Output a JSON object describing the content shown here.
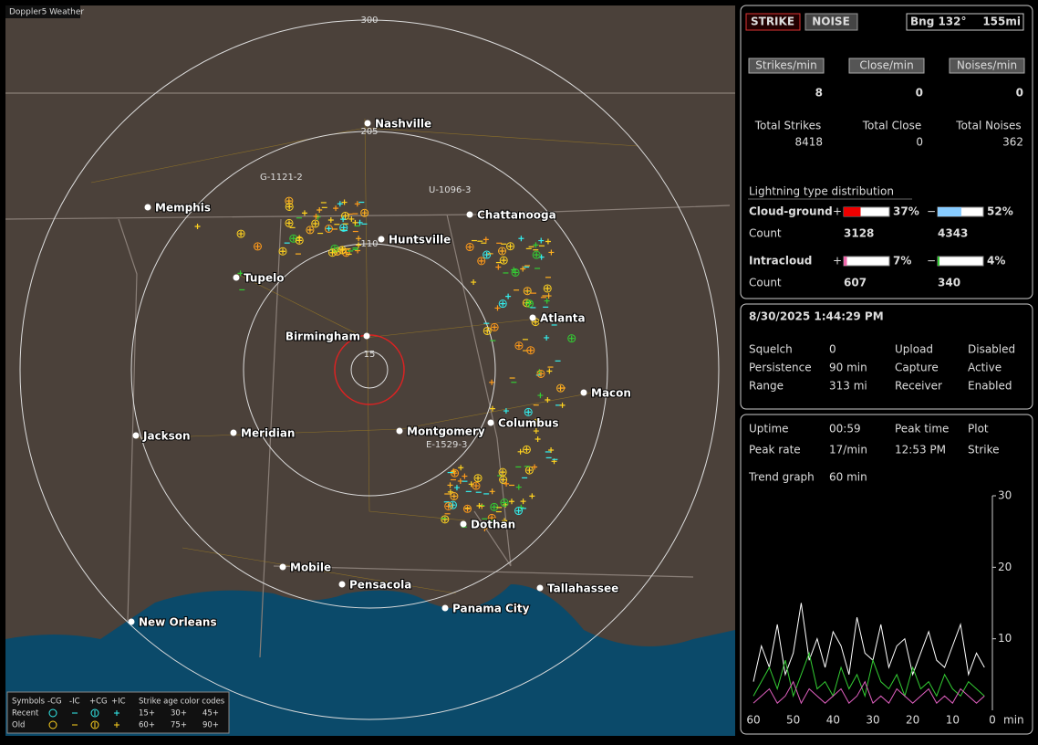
{
  "map": {
    "title": "Doppler5 Weather",
    "range_labels": [
      "300",
      "205",
      "110",
      "15"
    ],
    "cities": [
      "Nashville",
      "Memphis",
      "Chattanooga",
      "Huntsville",
      "Tupelo",
      "Atlanta",
      "Birmingham",
      "Macon",
      "Columbus",
      "Montgomery",
      "Jackson",
      "Meridian",
      "Dothan",
      "Mobile",
      "Pensacola",
      "Tallahassee",
      "Panama City",
      "New Orleans"
    ],
    "storm_labels": [
      "G-1121-2",
      "U-1096-3",
      "E-1529-3"
    ],
    "legend": {
      "symbols_label": "Symbols",
      "symbol_types": [
        "-CG",
        "-IC",
        "+CG",
        "+IC"
      ],
      "age_title": "Strike age color codes",
      "rows": [
        {
          "label": "Recent",
          "ages": [
            "15+",
            "30+",
            "45+"
          ]
        },
        {
          "label": "Old",
          "ages": [
            "60+",
            "75+",
            "90+"
          ]
        }
      ]
    }
  },
  "panel": {
    "buttons": {
      "strike": "STRIKE",
      "noise": "NOISE"
    },
    "bearing": "Bng 132°",
    "distance": "155mi",
    "rates": [
      {
        "label": "Strikes/min",
        "value": "8"
      },
      {
        "label": "Close/min",
        "value": "0"
      },
      {
        "label": "Noises/min",
        "value": "0"
      }
    ],
    "totals": [
      {
        "label": "Total Strikes",
        "value": "8418"
      },
      {
        "label": "Total Close",
        "value": "0"
      },
      {
        "label": "Total Noises",
        "value": "362"
      }
    ],
    "distribution": {
      "title": "Lightning type distribution",
      "rows": [
        {
          "name": "Cloud-ground",
          "plus_sign": "+",
          "plus": {
            "value": 37,
            "label": "37%"
          },
          "minus_sign": "−",
          "minus": {
            "value": 52,
            "label": "52%"
          },
          "count_label": "Count",
          "plus_count": "3128",
          "minus_count": "4343"
        },
        {
          "name": "Intracloud",
          "plus_sign": "+",
          "plus": {
            "value": 7,
            "label": "7%"
          },
          "minus_sign": "−",
          "minus": {
            "value": 4,
            "label": "4%"
          },
          "count_label": "Count",
          "plus_count": "607",
          "minus_count": "340"
        }
      ]
    },
    "datetime": "8/30/2025 1:44:29 PM",
    "status": [
      [
        "Squelch",
        "0",
        "Upload",
        "Disabled"
      ],
      [
        "Persistence",
        "90 min",
        "Capture",
        "Active"
      ],
      [
        "Range",
        "313 mi",
        "Receiver",
        "Enabled"
      ]
    ],
    "stats": [
      [
        "Uptime",
        "00:59",
        "Peak time",
        "Plot"
      ],
      [
        "Peak rate",
        "17/min",
        "12:53 PM",
        "Strike"
      ]
    ],
    "trend": [
      "Trend graph",
      "60 min"
    ]
  },
  "chart_data": {
    "type": "line",
    "xlabel": "min",
    "xlim": [
      60,
      0
    ],
    "ylim": [
      0,
      30
    ],
    "xticks": [
      60,
      50,
      40,
      30,
      20,
      10,
      0
    ],
    "yticks": [
      10,
      20,
      30
    ],
    "x": [
      60,
      58,
      56,
      54,
      52,
      50,
      48,
      46,
      44,
      42,
      40,
      38,
      36,
      34,
      32,
      30,
      28,
      26,
      24,
      22,
      20,
      18,
      16,
      14,
      12,
      10,
      8,
      6,
      4,
      2
    ],
    "series": [
      {
        "color": "#ffffff",
        "values": [
          4,
          9,
          6,
          12,
          5,
          8,
          15,
          7,
          10,
          6,
          11,
          9,
          5,
          13,
          8,
          7,
          12,
          6,
          9,
          10,
          5,
          8,
          11,
          7,
          6,
          9,
          12,
          5,
          8,
          6
        ]
      },
      {
        "color": "#33cc33",
        "values": [
          2,
          4,
          6,
          3,
          7,
          2,
          5,
          8,
          3,
          4,
          2,
          6,
          3,
          5,
          2,
          7,
          4,
          3,
          5,
          2,
          6,
          3,
          4,
          2,
          5,
          3,
          2,
          4,
          3,
          2
        ]
      },
      {
        "color": "#e060c0",
        "values": [
          1,
          2,
          3,
          1,
          2,
          4,
          1,
          3,
          2,
          1,
          2,
          3,
          1,
          2,
          4,
          1,
          2,
          1,
          3,
          2,
          1,
          2,
          3,
          1,
          2,
          1,
          3,
          2,
          1,
          2
        ]
      }
    ]
  }
}
